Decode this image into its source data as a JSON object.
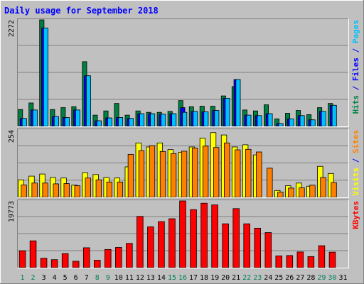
{
  "chart_data": {
    "type": "bar",
    "title": "Daily usage for September 2018",
    "days": [
      "1",
      "2",
      "3",
      "4",
      "5",
      "6",
      "7",
      "8",
      "9",
      "10",
      "11",
      "12",
      "13",
      "14",
      "15",
      "16",
      "17",
      "18",
      "19",
      "20",
      "21",
      "22",
      "23",
      "24",
      "25",
      "26",
      "27",
      "28",
      "29",
      "30",
      "31"
    ],
    "weekend_days": [
      "1",
      "2",
      "8",
      "9",
      "15",
      "16",
      "22",
      "23",
      "29",
      "30"
    ],
    "panels": [
      {
        "id": "hits-pages",
        "max_label": "2272",
        "side_labels": [
          {
            "text": "Hits",
            "color": "#008040"
          },
          {
            "text": " / ",
            "color": "#0000FF"
          },
          {
            "text": "Files",
            "color": "#0000FF"
          },
          {
            "text": " / ",
            "color": "#0000FF"
          },
          {
            "text": "Pages",
            "color": "#00C0FF"
          }
        ],
        "series": [
          {
            "name": "Hits",
            "color": "#008040",
            "values": [
              360,
              500,
              2272,
              360,
              400,
              420,
              1380,
              240,
              330,
              490,
              240,
              330,
              300,
              300,
              320,
              550,
              420,
              430,
              430,
              650,
              850,
              350,
              330,
              460,
              160,
              280,
              340,
              250,
              400,
              490,
              0
            ]
          },
          {
            "name": "Files",
            "color": "#0000FF",
            "values": [
              170,
              350,
              2100,
              210,
              190,
              350,
              1080,
              120,
              180,
              190,
              170,
              270,
              270,
              260,
              270,
              400,
              320,
              310,
              340,
              600,
              1000,
              240,
              230,
              270,
              60,
              160,
              230,
              140,
              320,
              450,
              0
            ]
          },
          {
            "name": "Pages",
            "color": "#00C0FF",
            "values": [
              170,
              350,
              2100,
              210,
              190,
              350,
              1080,
              120,
              180,
              190,
              170,
              270,
              270,
              260,
              270,
              300,
              320,
              310,
              340,
              600,
              1000,
              240,
              230,
              270,
              60,
              160,
              230,
              140,
              320,
              450,
              0
            ]
          }
        ],
        "ymax": 2272
      },
      {
        "id": "visits-sites",
        "max_label": "254",
        "side_labels": [
          {
            "text": "Visits",
            "color": "#FFFF00"
          },
          {
            "text": " / ",
            "color": "#0000FF"
          },
          {
            "text": "Sites",
            "color": "#FF8000"
          }
        ],
        "series": [
          {
            "name": "Visits",
            "color": "#FFFF00",
            "values": [
              66,
              80,
              88,
              75,
              73,
              46,
              93,
              86,
              75,
              73,
              115,
              205,
              190,
              205,
              180,
              170,
              190,
              223,
              244,
              235,
              190,
              198,
              160,
              0,
              26,
              44,
              54,
              42,
              117,
              90,
              0
            ]
          },
          {
            "name": "Sites",
            "color": "#FF8000",
            "values": [
              47,
              54,
              54,
              51,
              52,
              44,
              73,
              66,
              58,
              58,
              162,
              176,
              195,
              173,
              165,
              174,
              186,
              193,
              188,
              205,
              179,
              181,
              171,
              110,
              20,
              35,
              36,
              46,
              75,
              56,
              0
            ]
          }
        ],
        "ymax": 254
      },
      {
        "id": "kbytes",
        "max_label": "19773",
        "side_labels": [
          {
            "text": "KBytes",
            "color": "#FF0000"
          }
        ],
        "series": [
          {
            "name": "KBytes",
            "color": "#FF0000",
            "values": [
              5000,
              7950,
              2800,
              2370,
              4180,
              1900,
              5900,
              2200,
              5400,
              6000,
              7200,
              15200,
              12100,
              13650,
              14500,
              19773,
              17200,
              19100,
              18600,
              13000,
              17500,
              13000,
              11700,
              10400,
              3500,
              3600,
              4660,
              3300,
              6500,
              4600,
              0
            ]
          }
        ],
        "ymax": 19773
      }
    ]
  }
}
